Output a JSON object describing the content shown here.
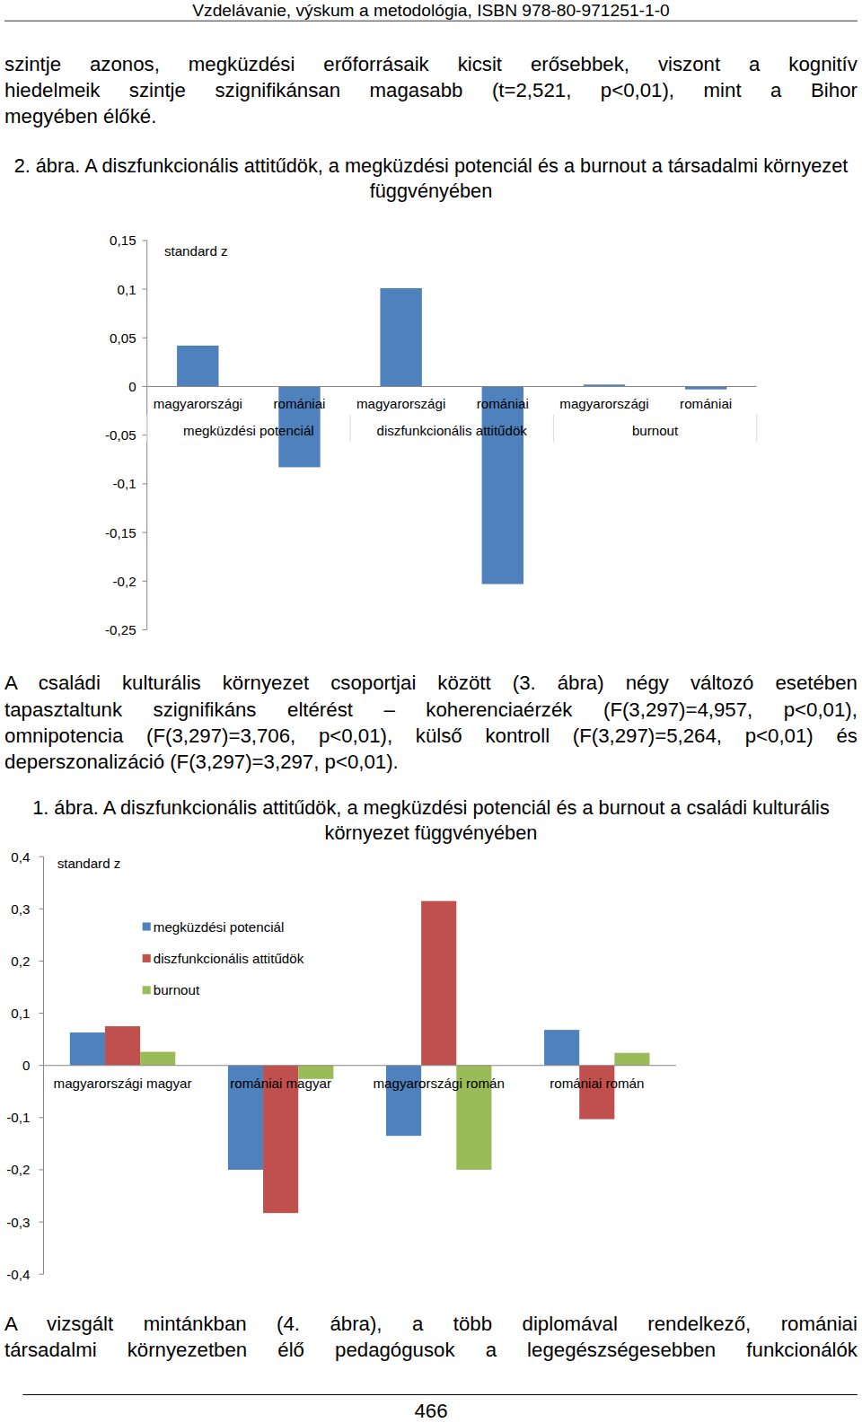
{
  "header": "Vzdelávanie, výskum a metodológia, ISBN 978-80-971251-1-0",
  "paragraphs": [
    [
      "szintje azonos, megküzdési erőforrásaik kicsit erősebbek, viszont a kognitív",
      "hiedelmeik szintje szignifikánsan magasabb (t=2,521, p<0,01), mint a Bihor",
      "megyében élőké."
    ],
    [
      "A családi kulturális környezet csoportjai között (3. ábra) négy változó esetében",
      "tapasztaltunk szignifikáns eltérést – koherenciaérzék (F(3,297)=4,957, p<0,01),",
      "omnipotencia (F(3,297)=3,706, p<0,01), külső kontroll (F(3,297)=5,264, p<0,01) és",
      "deperszonalizáció (F(3,297)=3,297, p<0,01)."
    ],
    [
      "A vizsgált mintánkban (4. ábra), a több diplomával rendelkező, romániai",
      "társadalmi környezetben élő pedagógusok a legegészségesebben funkcionálók"
    ]
  ],
  "chart_data": [
    {
      "type": "bar",
      "title": "2. ábra. A diszfunkcionális attitűdök, a megküzdési potenciál és a burnout a társadalmi környezet függvényében",
      "ylabel": "standard z",
      "categories": [
        "magyarországi",
        "romániai",
        "magyarországi",
        "romániai",
        "magyarországi",
        "romániai"
      ],
      "category_groups": [
        "megküzdési potenciál",
        "diszfunkcionális attitűdök",
        "burnout"
      ],
      "values": [
        0.042,
        -0.083,
        0.101,
        -0.203,
        0.002,
        -0.003
      ],
      "color": "#4f81bd",
      "ylim": [
        -0.25,
        0.15
      ],
      "yticks": [
        {
          "value": 0.15,
          "label": "0,15"
        },
        {
          "value": 0.1,
          "label": "0,1"
        },
        {
          "value": 0.05,
          "label": "0,05"
        },
        0,
        {
          "value": -0.05,
          "label": "-0,05"
        },
        {
          "value": -0.1,
          "label": "-0,1"
        },
        {
          "value": -0.15,
          "label": "-0,15"
        },
        {
          "value": -0.2,
          "label": "-0,2"
        },
        {
          "value": -0.25,
          "label": "-0,25"
        }
      ],
      "grid": false
    },
    {
      "type": "bar",
      "title": "1. ábra. A diszfunkcionális attitűdök, a megküzdési potenciál és a burnout a családi kulturális környezet függvényében",
      "ylabel": "standard z",
      "categories": [
        "magyarországi magyar",
        "romániai magyar",
        "magyarországi román",
        "romániai román"
      ],
      "series": [
        {
          "name": "megküzdési potenciál",
          "color": "#4f81bd",
          "values": [
            0.063,
            -0.2,
            -0.135,
            0.068
          ]
        },
        {
          "name": "diszfunkcionális attitűdök",
          "color": "#c0504d",
          "values": [
            0.075,
            -0.283,
            0.315,
            -0.103
          ]
        },
        {
          "name": "burnout",
          "color": "#9bbb59",
          "values": [
            0.026,
            -0.026,
            -0.2,
            0.024
          ]
        }
      ],
      "ylim": [
        -0.4,
        0.4
      ],
      "yticks": [
        {
          "value": 0.4,
          "label": "0,4"
        },
        {
          "value": 0.3,
          "label": "0,3"
        },
        {
          "value": 0.2,
          "label": "0,2"
        },
        {
          "value": 0.1,
          "label": "0,1"
        },
        0,
        {
          "value": -0.1,
          "label": "-0,1"
        },
        {
          "value": -0.2,
          "label": "-0,2"
        },
        {
          "value": -0.3,
          "label": "-0,3"
        },
        {
          "value": -0.4,
          "label": "-0,4"
        }
      ],
      "legend": "top-left",
      "grid": false
    }
  ],
  "page_number": 466
}
